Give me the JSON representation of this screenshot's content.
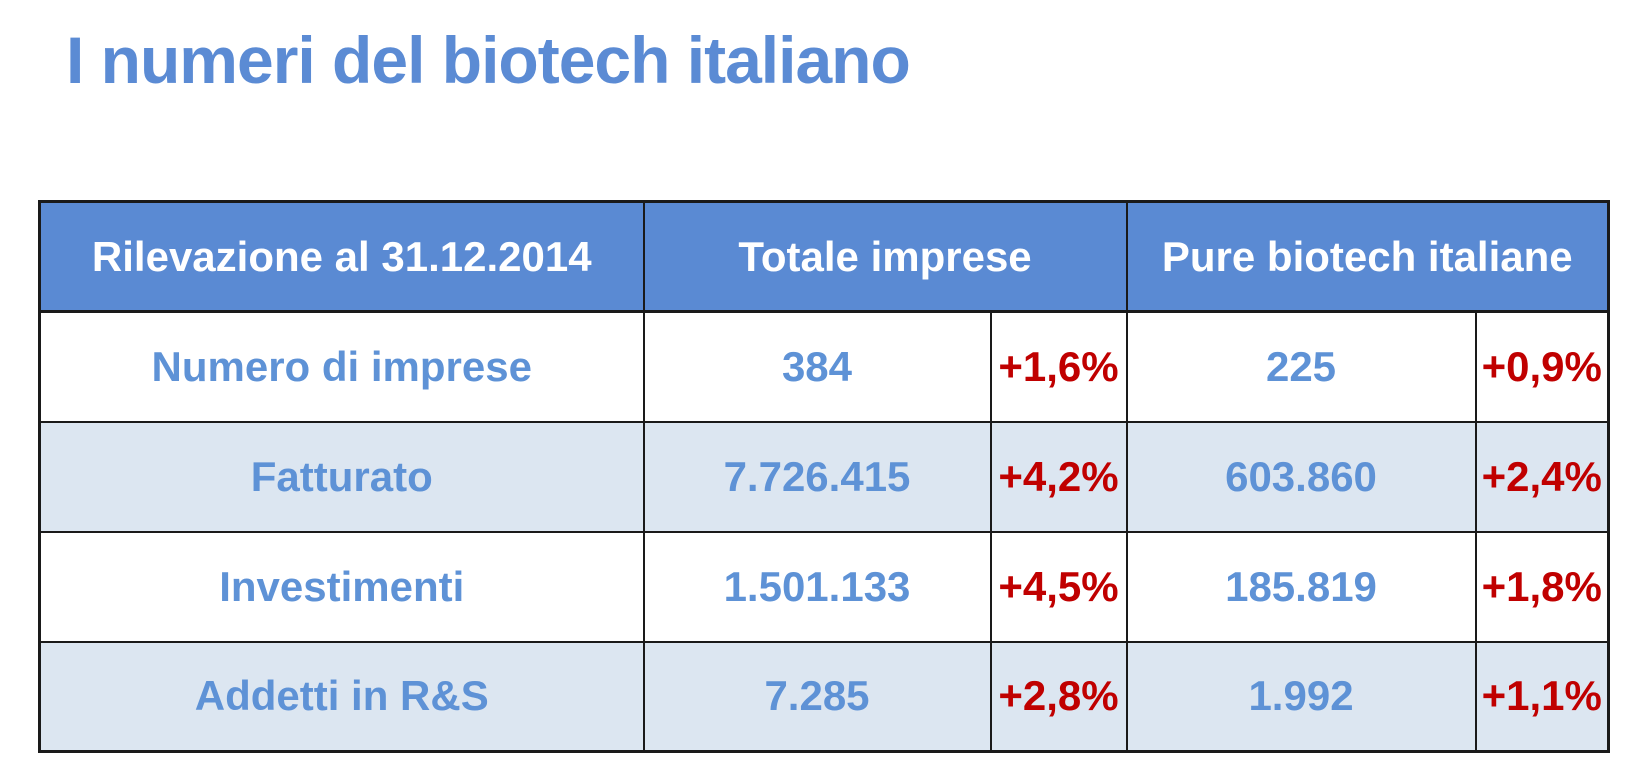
{
  "page": {
    "title": "I numeri del biotech italiano"
  },
  "colors": {
    "title_blue": "#5B8BD4",
    "header_bg": "#5A8AD3",
    "header_text": "#ffffff",
    "cell_text_blue": "#5E92D6",
    "delta_red": "#C00000",
    "band_row_bg": "#DCE6F1",
    "border": "#1a1a1a"
  },
  "table": {
    "header": {
      "col_label": "Rilevazione al 31.12.2014",
      "group_totale": "Totale imprese",
      "group_pure": "Pure biotech italiane"
    },
    "rows": [
      {
        "label": "Numero di imprese",
        "totale_value": "384",
        "totale_delta": "+1,6%",
        "pure_value": "225",
        "pure_delta": "+0,9%"
      },
      {
        "label": "Fatturato",
        "totale_value": "7.726.415",
        "totale_delta": "+4,2%",
        "pure_value": "603.860",
        "pure_delta": "+2,4%"
      },
      {
        "label": "Investimenti",
        "totale_value": "1.501.133",
        "totale_delta": "+4,5%",
        "pure_value": "185.819",
        "pure_delta": "+1,8%"
      },
      {
        "label": "Addetti in R&S",
        "totale_value": "7.285",
        "totale_delta": "+2,8%",
        "pure_value": "1.992",
        "pure_delta": "+1,1%"
      }
    ]
  },
  "chart_data": {
    "type": "table",
    "title": "I numeri del biotech italiano",
    "columns": [
      "Rilevazione al 31.12.2014",
      "Totale imprese (valore)",
      "Totale imprese (variazione)",
      "Pure biotech italiane (valore)",
      "Pure biotech italiane (variazione)"
    ],
    "rows": [
      [
        "Numero di imprese",
        "384",
        "+1,6%",
        "225",
        "+0,9%"
      ],
      [
        "Fatturato",
        "7.726.415",
        "+4,2%",
        "603.860",
        "+2,4%"
      ],
      [
        "Investimenti",
        "1.501.133",
        "+4,5%",
        "185.819",
        "+1,8%"
      ],
      [
        "Addetti in R&S",
        "7.285",
        "+2,8%",
        "1.992",
        "+1,1%"
      ]
    ]
  }
}
